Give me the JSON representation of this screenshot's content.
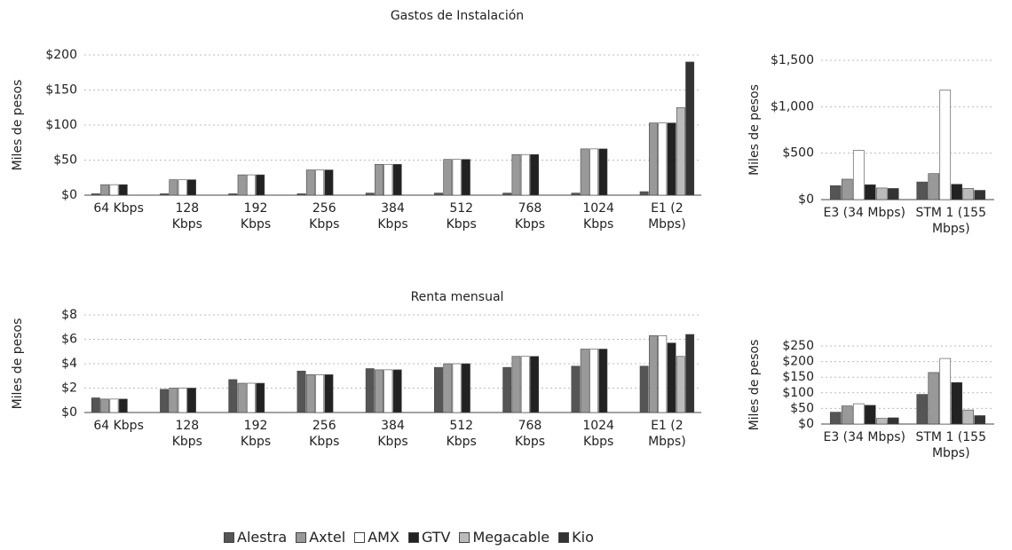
{
  "chart_data": [
    {
      "type": "bar",
      "title": "Gastos de Instalación",
      "ylabel": "Miles de pesos",
      "categories": [
        "64 Kbps",
        "128 Kbps",
        "192 Kbps",
        "256 Kbps",
        "384 Kbps",
        "512 Kbps",
        "768 Kbps",
        "1024 Kbps",
        "E1 (2 Mbps)"
      ],
      "series": [
        {
          "name": "Alestra",
          "color": "#555555",
          "values": [
            2,
            2,
            2,
            2,
            3,
            3,
            3,
            3,
            5
          ]
        },
        {
          "name": "Axtel",
          "color": "#999999",
          "values": [
            15,
            22,
            29,
            36,
            44,
            51,
            58,
            66,
            103
          ]
        },
        {
          "name": "AMX",
          "color": "#ffffff",
          "values": [
            15,
            22,
            29,
            36,
            44,
            51,
            58,
            66,
            103
          ]
        },
        {
          "name": "GTV",
          "color": "#222222",
          "values": [
            15,
            22,
            29,
            36,
            44,
            51,
            58,
            66,
            103
          ]
        },
        {
          "name": "Megacable",
          "color": "#bbbbbb",
          "values": [
            null,
            null,
            null,
            null,
            null,
            null,
            null,
            null,
            125
          ]
        },
        {
          "name": "Kio",
          "color": "#333333",
          "values": [
            null,
            null,
            null,
            null,
            null,
            null,
            null,
            null,
            190
          ]
        }
      ],
      "ylim": [
        0,
        200
      ],
      "yticks": [
        {
          "value": 0,
          "label": "$0"
        },
        {
          "value": 50,
          "label": "$50"
        },
        {
          "value": 100,
          "label": "$100"
        },
        {
          "value": 150,
          "label": "$150"
        },
        {
          "value": 200,
          "label": "$200"
        }
      ],
      "grid": true
    },
    {
      "type": "bar",
      "ylabel": "Miles de pesos",
      "categories": [
        "E3 (34 Mbps)",
        "STM 1 (155 Mbps)"
      ],
      "series": [
        {
          "name": "Alestra",
          "color": "#555555",
          "values": [
            150,
            190
          ]
        },
        {
          "name": "Axtel",
          "color": "#999999",
          "values": [
            220,
            280
          ]
        },
        {
          "name": "AMX",
          "color": "#ffffff",
          "values": [
            530,
            1180
          ]
        },
        {
          "name": "GTV",
          "color": "#222222",
          "values": [
            160,
            165
          ]
        },
        {
          "name": "Megacable",
          "color": "#bbbbbb",
          "values": [
            125,
            120
          ]
        },
        {
          "name": "Kio",
          "color": "#333333",
          "values": [
            120,
            100
          ]
        }
      ],
      "ylim": [
        0,
        1500
      ],
      "yticks": [
        {
          "value": 0,
          "label": "$0"
        },
        {
          "value": 500,
          "label": "$500"
        },
        {
          "value": 1000,
          "label": "$1,000"
        },
        {
          "value": 1500,
          "label": "$1,500"
        }
      ],
      "grid": true
    },
    {
      "type": "bar",
      "title": "Renta mensual",
      "ylabel": "Miles de pesos",
      "categories": [
        "64 Kbps",
        "128 Kbps",
        "192 Kbps",
        "256 Kbps",
        "384 Kbps",
        "512 Kbps",
        "768 Kbps",
        "1024 Kbps",
        "E1 (2 Mbps)"
      ],
      "series": [
        {
          "name": "Alestra",
          "color": "#555555",
          "values": [
            1.2,
            1.9,
            2.7,
            3.4,
            3.6,
            3.7,
            3.7,
            3.8,
            3.8
          ]
        },
        {
          "name": "Axtel",
          "color": "#999999",
          "values": [
            1.1,
            2.0,
            2.4,
            3.1,
            3.5,
            4.0,
            4.6,
            5.2,
            6.3
          ]
        },
        {
          "name": "AMX",
          "color": "#ffffff",
          "values": [
            1.1,
            2.0,
            2.4,
            3.1,
            3.5,
            4.0,
            4.6,
            5.2,
            6.3
          ]
        },
        {
          "name": "GTV",
          "color": "#222222",
          "values": [
            1.1,
            2.0,
            2.4,
            3.1,
            3.5,
            4.0,
            4.6,
            5.2,
            5.7
          ]
        },
        {
          "name": "Megacable",
          "color": "#bbbbbb",
          "values": [
            null,
            null,
            null,
            null,
            null,
            null,
            null,
            null,
            4.6
          ]
        },
        {
          "name": "Kio",
          "color": "#333333",
          "values": [
            null,
            null,
            null,
            null,
            null,
            null,
            null,
            null,
            6.4
          ]
        }
      ],
      "ylim": [
        0,
        8
      ],
      "yticks": [
        {
          "value": 0,
          "label": "$0"
        },
        {
          "value": 2,
          "label": "$2"
        },
        {
          "value": 4,
          "label": "$4"
        },
        {
          "value": 6,
          "label": "$6"
        },
        {
          "value": 8,
          "label": "$8"
        }
      ],
      "grid": true
    },
    {
      "type": "bar",
      "ylabel": "Miles de pesos",
      "categories": [
        "E3 (34 Mbps)",
        "STM 1 (155 Mbps)"
      ],
      "series": [
        {
          "name": "Alestra",
          "color": "#555555",
          "values": [
            38,
            95
          ]
        },
        {
          "name": "Axtel",
          "color": "#999999",
          "values": [
            58,
            165
          ]
        },
        {
          "name": "AMX",
          "color": "#ffffff",
          "values": [
            65,
            210
          ]
        },
        {
          "name": "GTV",
          "color": "#222222",
          "values": [
            60,
            133
          ]
        },
        {
          "name": "Megacable",
          "color": "#bbbbbb",
          "values": [
            18,
            45
          ]
        },
        {
          "name": "Kio",
          "color": "#333333",
          "values": [
            20,
            27
          ]
        }
      ],
      "ylim": [
        0,
        250
      ],
      "yticks": [
        {
          "value": 0,
          "label": "$0"
        },
        {
          "value": 50,
          "label": "$50"
        },
        {
          "value": 100,
          "label": "$100"
        },
        {
          "value": 150,
          "label": "$150"
        },
        {
          "value": 200,
          "label": "$200"
        },
        {
          "value": 250,
          "label": "$250"
        }
      ],
      "grid": true
    }
  ]
}
